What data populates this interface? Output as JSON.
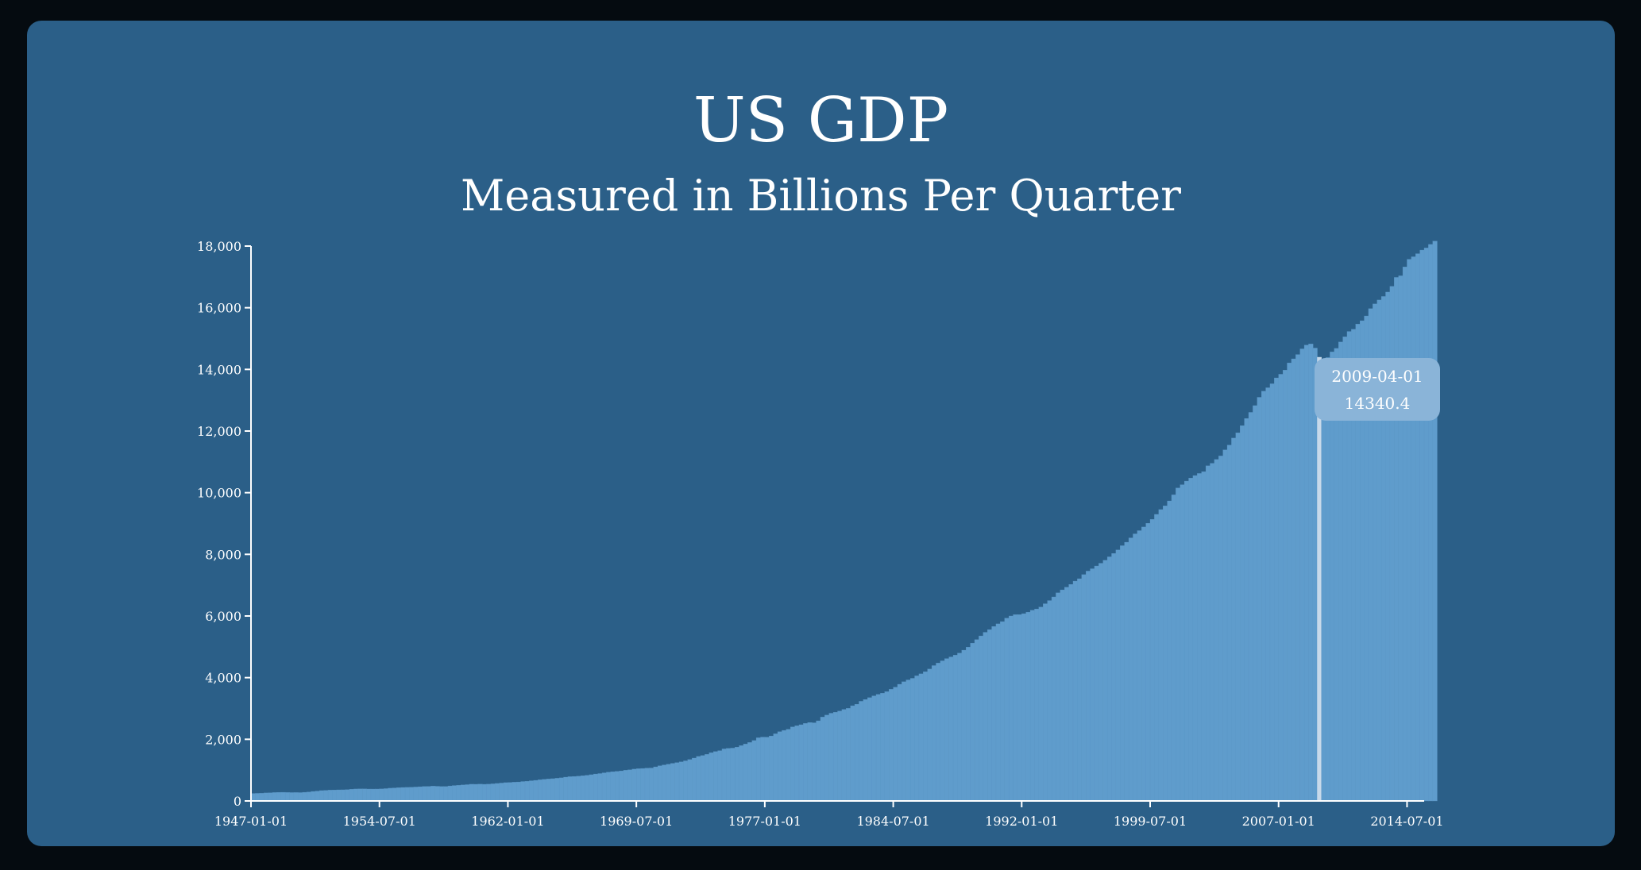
{
  "colors": {
    "background": "#050b10",
    "card": "#2b5f88",
    "bar": "#5f9ccc",
    "bar_highlight": "#c7d9ea",
    "tooltip": "#8ab4d8",
    "text": "#ffffff"
  },
  "tooltip": {
    "date": "2009-04-01",
    "value": "14340.4"
  },
  "chart_data": {
    "type": "bar",
    "title": "US GDP",
    "subtitle": "Measured in Billions Per Quarter",
    "xlabel": "",
    "ylabel": "",
    "x_start": "1947-01-01",
    "x_end": "2015-07-01",
    "frequency": "quarterly",
    "ylim": [
      0,
      18000
    ],
    "grid": false,
    "y_ticks": [
      0,
      2000,
      4000,
      6000,
      8000,
      10000,
      12000,
      14000,
      16000,
      18000
    ],
    "y_tick_labels": [
      "0",
      "2,000",
      "4,000",
      "6,000",
      "8,000",
      "10,000",
      "12,000",
      "14,000",
      "16,000",
      "18,000"
    ],
    "x_tick_labels": [
      "1947-01-01",
      "1954-07-01",
      "1962-01-01",
      "1969-07-01",
      "1977-01-01",
      "1984-07-01",
      "1992-01-01",
      "1999-07-01",
      "2007-01-01",
      "2014-07-01"
    ],
    "highlighted_date": "2009-04-01",
    "series": [
      {
        "values": [
          243.1,
          246.3,
          250.1,
          260.3,
          266.2,
          272.9,
          279.5,
          280.7,
          275.4,
          271.7,
          273.3,
          271.0,
          281.2,
          290.7,
          308.5,
          320.3,
          336.4,
          344.5,
          351.8,
          356.6,
          360.2,
          361.4,
          368.1,
          381.2,
          388.5,
          392.3,
          391.7,
          386.5,
          385.9,
          386.7,
          391.6,
          400.3,
          414.0,
          422.2,
          430.9,
          437.8,
          440.5,
          446.8,
          452.0,
          461.3,
          470.6,
          472.8,
          480.3,
          475.7,
          467.9,
          468.7,
          487.1,
          500.0,
          508.7,
          519.0,
          528.6,
          542.6,
          541.1,
          545.6,
          540.2,
          545.0,
          555.5,
          567.7,
          580.6,
          594.0,
          600.4,
          608.3,
          615.5,
          630.5,
          636.9,
          655.7,
          668.9,
          686.3,
          700.5,
          712.7,
          722.4,
          736.6,
          750.1,
          772.0,
          787.9,
          795.7,
          804.3,
          819.3,
          833.6,
          851.3,
          874.1,
          888.7,
          912.6,
          933.5,
          949.7,
          961.0,
          974.9,
          996.0,
          1011.0,
          1032.5,
          1046.2,
          1054.3,
          1066.5,
          1068.7,
          1106.2,
          1142.2,
          1168.5,
          1192.1,
          1220.4,
          1244.7,
          1269.8,
          1301.3,
          1343.0,
          1390.9,
          1444.3,
          1473.8,
          1510.2,
          1566.9,
          1602.2,
          1632.3,
          1688.1,
          1706.6,
          1713.9,
          1746.2,
          1795.0,
          1846.4,
          1896.3,
          1960.2,
          2049.4,
          2071.4,
          2070.1,
          2108.2,
          2177.9,
          2248.2,
          2289.6,
          2326.2,
          2401.8,
          2439.2,
          2472.5,
          2514.8,
          2545.1,
          2535.4,
          2599.7,
          2720.5,
          2784.4,
          2845.8,
          2877.8,
          2917.4,
          2971.0,
          3004.1,
          3088.6,
          3138.1,
          3233.3,
          3291.1,
          3351.0,
          3409.7,
          3456.5,
          3496.7,
          3545.7,
          3623.1,
          3692.4,
          3785.3,
          3867.8,
          3926.5,
          3978.9,
          4058.5,
          4123.9,
          4193.4,
          4279.6,
          4391.0,
          4472.8,
          4545.2,
          4619.1,
          4672.5,
          4730.5,
          4797.3,
          4891.7,
          4990.0,
          5121.2,
          5235.8,
          5354.3,
          5471.1,
          5558.8,
          5661.2,
          5745.3,
          5818.1,
          5932.1,
          6000.6,
          6043.8,
          6044.5,
          6076.3,
          6125.5,
          6186.6,
          6228.3,
          6291.7,
          6398.3,
          6500.8,
          6618.3,
          6752.1,
          6848.0,
          6934.7,
          7026.3,
          7132.1,
          7209.6,
          7342.3,
          7456.6,
          7533.0,
          7622.3,
          7711.5,
          7808.3,
          7919.4,
          8030.1,
          8144.8,
          8280.8,
          8393.3,
          8534.9,
          8664.8,
          8769.0,
          8887.0,
          9008.6,
          9134.4,
          9296.8,
          9453.0,
          9574.2,
          9733.1,
          9930.1,
          10154.8,
          10259.7,
          10376.6,
          10475.6,
          10556.1,
          10623.9,
          10683.6,
          10872.5,
          10954.6,
          11079.0,
          11192.0,
          11390.5,
          11546.1,
          11772.2,
          11943.3,
          12175.3,
          12408.4,
          12605.8,
          12825.3,
          13094.8,
          13292.6,
          13404.5,
          13533.5,
          13724.2,
          13842.4,
          13976.3,
          14211.2,
          14342.7,
          14482.5,
          14665.7,
          14788.6,
          14825.8,
          14691.5,
          14399.8,
          14340.4,
          14384.1,
          14566.5,
          14681.1,
          14888.6,
          15057.7,
          15230.2,
          15301.9,
          15469.1,
          15579.1,
          15733.4,
          15970.7,
          16123.9,
          16251.6,
          16366.1,
          16508.0,
          16696.7,
          16984.0,
          17035.6,
          17324.5,
          17572.5,
          17653.5,
          17753.5,
          17870.5,
          17938.8,
          18054.5,
          18163.0
        ]
      }
    ]
  }
}
